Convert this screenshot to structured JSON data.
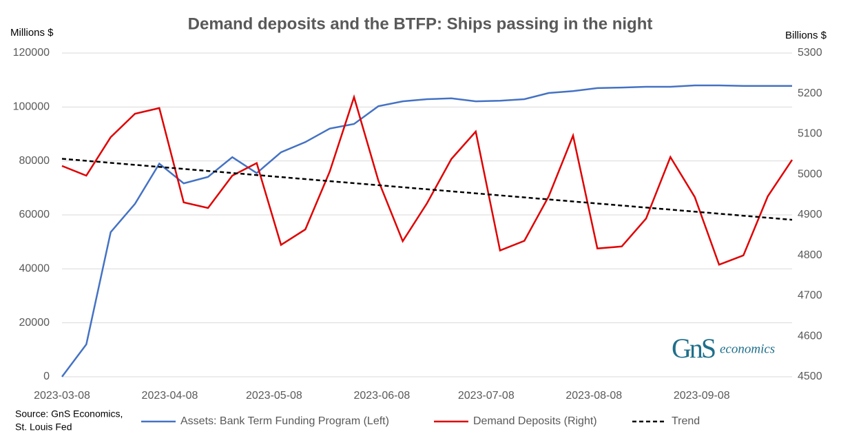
{
  "chart_data": {
    "type": "line",
    "title": "Demand deposits and the BTFP:  Ships passing in the night",
    "ylabel": "Millions $",
    "y2label": "Billions $",
    "source": [
      "Source: GnS Economics,",
      "St. Louis Fed"
    ],
    "logo": {
      "mark": "GnS",
      "text": "economics"
    },
    "x": [
      "2023-03-08",
      "2023-03-15",
      "2023-03-22",
      "2023-03-29",
      "2023-04-05",
      "2023-04-12",
      "2023-04-19",
      "2023-04-26",
      "2023-05-03",
      "2023-05-10",
      "2023-05-17",
      "2023-05-24",
      "2023-05-31",
      "2023-06-07",
      "2023-06-14",
      "2023-06-21",
      "2023-06-28",
      "2023-07-05",
      "2023-07-12",
      "2023-07-19",
      "2023-07-26",
      "2023-08-02",
      "2023-08-09",
      "2023-08-16",
      "2023-08-23",
      "2023-08-30",
      "2023-09-06",
      "2023-09-13",
      "2023-09-20",
      "2023-09-27",
      "2023-10-04"
    ],
    "xlim": [
      "2023-03-08",
      "2023-10-04"
    ],
    "xticks": [
      "2023-03-08",
      "2023-04-08",
      "2023-05-08",
      "2023-06-08",
      "2023-07-08",
      "2023-08-08",
      "2023-09-08"
    ],
    "ylim": [
      0,
      120000
    ],
    "yticks": [
      0,
      20000,
      40000,
      60000,
      80000,
      100000,
      120000
    ],
    "y2lim": [
      4500,
      5300
    ],
    "y2ticks": [
      4500,
      4600,
      4700,
      4800,
      4900,
      5000,
      5100,
      5200,
      5300
    ],
    "grid": true,
    "legend": "bottom",
    "series": [
      {
        "name": "Assets: Bank Term Funding Program (Left)",
        "color": "#4472c4",
        "values": [
          0,
          12000,
          53600,
          64100,
          79000,
          71700,
          74100,
          81400,
          75500,
          83200,
          87000,
          92000,
          93700,
          100300,
          102100,
          102900,
          103200,
          102100,
          102300,
          102900,
          105200,
          105900,
          107000,
          107200,
          107500,
          107500,
          108000,
          108000,
          107800,
          107800,
          107800
        ]
      },
      {
        "name": "Demand Deposits (Right)",
        "color": "#e00000",
        "axis": "y2",
        "values": [
          5021,
          4997,
          5092,
          5150,
          5164,
          4931,
          4917,
          4997,
          5028,
          4826,
          4864,
          5007,
          5191,
          4985,
          4835,
          4929,
          5038,
          5106,
          4812,
          4836,
          4946,
          5096,
          4817,
          4822,
          4891,
          5043,
          4944,
          4777,
          4800,
          4946,
          5036
        ]
      },
      {
        "name": "Trend",
        "color": "#000000",
        "dashed": true,
        "x": [
          "2023-03-08",
          "2023-10-04"
        ],
        "values": [
          80800,
          58200
        ]
      }
    ]
  }
}
